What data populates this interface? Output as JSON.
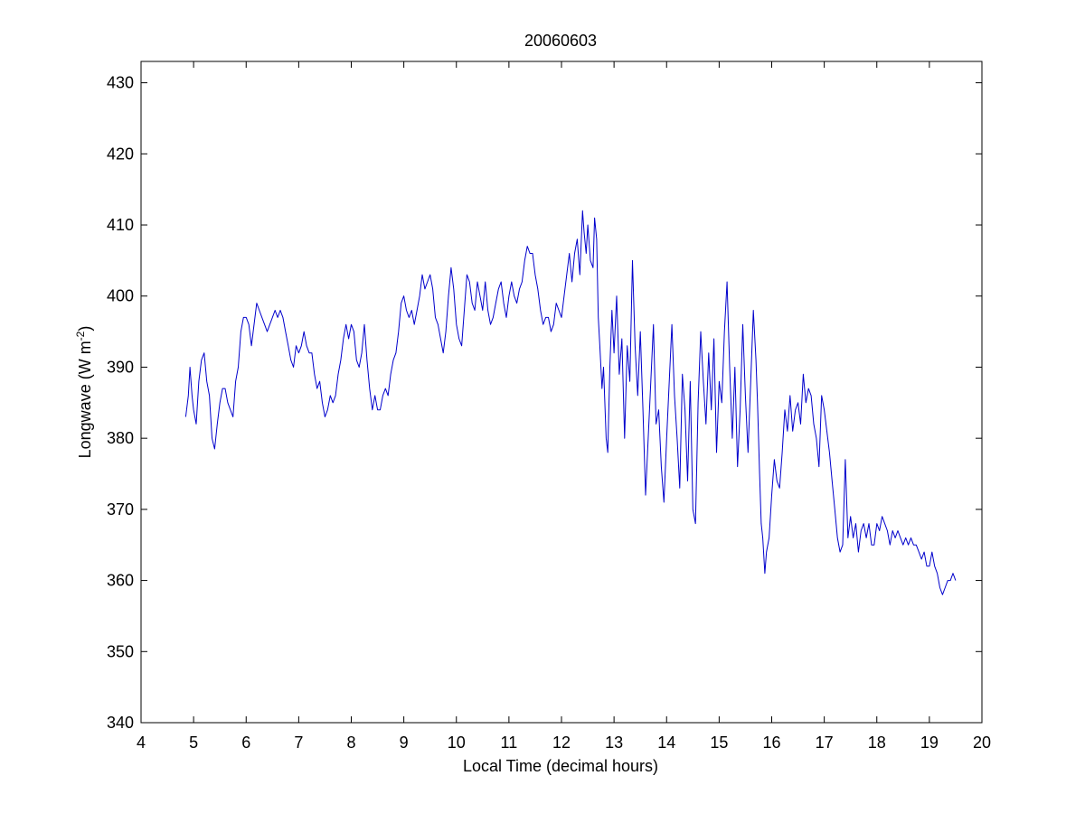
{
  "chart_data": {
    "type": "line",
    "title": "20060603",
    "xlabel": "Local Time (decimal hours)",
    "ylabel_main": "Longwave (W m",
    "ylabel_sup": "-2",
    "ylabel_close": ")",
    "xlim": [
      4,
      20
    ],
    "ylim": [
      340,
      433
    ],
    "xticks": [
      4,
      5,
      6,
      7,
      8,
      9,
      10,
      11,
      12,
      13,
      14,
      15,
      16,
      17,
      18,
      19,
      20
    ],
    "yticks": [
      340,
      350,
      360,
      370,
      380,
      390,
      400,
      410,
      420,
      430
    ],
    "grid": false,
    "line_color": "#0000cc",
    "series": [
      {
        "points": [
          [
            4.85,
            383
          ],
          [
            4.9,
            386
          ],
          [
            4.93,
            390
          ],
          [
            4.97,
            386
          ],
          [
            5.0,
            384
          ],
          [
            5.05,
            382
          ],
          [
            5.1,
            388
          ],
          [
            5.15,
            391
          ],
          [
            5.2,
            392
          ],
          [
            5.25,
            388
          ],
          [
            5.3,
            386
          ],
          [
            5.35,
            380
          ],
          [
            5.4,
            378.5
          ],
          [
            5.45,
            382
          ],
          [
            5.5,
            385
          ],
          [
            5.55,
            387
          ],
          [
            5.6,
            387
          ],
          [
            5.65,
            385
          ],
          [
            5.7,
            384
          ],
          [
            5.75,
            383
          ],
          [
            5.8,
            388
          ],
          [
            5.85,
            390
          ],
          [
            5.9,
            395
          ],
          [
            5.95,
            397
          ],
          [
            6.0,
            397
          ],
          [
            6.05,
            396
          ],
          [
            6.1,
            393
          ],
          [
            6.15,
            396
          ],
          [
            6.2,
            399
          ],
          [
            6.25,
            398
          ],
          [
            6.3,
            397
          ],
          [
            6.35,
            396
          ],
          [
            6.4,
            395
          ],
          [
            6.5,
            397
          ],
          [
            6.55,
            398
          ],
          [
            6.6,
            397
          ],
          [
            6.65,
            398
          ],
          [
            6.7,
            397
          ],
          [
            6.75,
            395
          ],
          [
            6.8,
            393
          ],
          [
            6.85,
            391
          ],
          [
            6.9,
            390
          ],
          [
            6.95,
            393
          ],
          [
            7.0,
            392
          ],
          [
            7.05,
            393
          ],
          [
            7.1,
            395
          ],
          [
            7.15,
            393
          ],
          [
            7.2,
            392
          ],
          [
            7.25,
            392
          ],
          [
            7.3,
            389
          ],
          [
            7.35,
            387
          ],
          [
            7.4,
            388
          ],
          [
            7.45,
            385
          ],
          [
            7.5,
            383
          ],
          [
            7.55,
            384
          ],
          [
            7.6,
            386
          ],
          [
            7.65,
            385
          ],
          [
            7.7,
            386
          ],
          [
            7.75,
            389
          ],
          [
            7.8,
            391
          ],
          [
            7.85,
            394
          ],
          [
            7.9,
            396
          ],
          [
            7.95,
            394
          ],
          [
            8.0,
            396
          ],
          [
            8.05,
            395
          ],
          [
            8.1,
            391
          ],
          [
            8.15,
            390
          ],
          [
            8.2,
            392
          ],
          [
            8.25,
            396
          ],
          [
            8.3,
            391
          ],
          [
            8.35,
            387
          ],
          [
            8.4,
            384
          ],
          [
            8.45,
            386
          ],
          [
            8.5,
            384
          ],
          [
            8.55,
            384
          ],
          [
            8.6,
            386
          ],
          [
            8.65,
            387
          ],
          [
            8.7,
            386
          ],
          [
            8.75,
            389
          ],
          [
            8.8,
            391
          ],
          [
            8.85,
            392
          ],
          [
            8.9,
            395
          ],
          [
            8.95,
            399
          ],
          [
            9.0,
            400
          ],
          [
            9.05,
            398
          ],
          [
            9.1,
            397
          ],
          [
            9.15,
            398
          ],
          [
            9.2,
            396
          ],
          [
            9.25,
            398
          ],
          [
            9.3,
            400
          ],
          [
            9.35,
            403
          ],
          [
            9.4,
            401
          ],
          [
            9.45,
            402
          ],
          [
            9.5,
            403
          ],
          [
            9.55,
            401
          ],
          [
            9.6,
            397
          ],
          [
            9.65,
            396
          ],
          [
            9.7,
            394
          ],
          [
            9.75,
            392
          ],
          [
            9.8,
            395
          ],
          [
            9.85,
            400
          ],
          [
            9.9,
            404
          ],
          [
            9.95,
            401
          ],
          [
            10.0,
            396
          ],
          [
            10.05,
            394
          ],
          [
            10.1,
            393
          ],
          [
            10.15,
            398
          ],
          [
            10.2,
            403
          ],
          [
            10.25,
            402
          ],
          [
            10.3,
            399
          ],
          [
            10.35,
            398
          ],
          [
            10.4,
            402
          ],
          [
            10.45,
            400
          ],
          [
            10.5,
            398
          ],
          [
            10.55,
            402
          ],
          [
            10.6,
            398
          ],
          [
            10.65,
            396
          ],
          [
            10.7,
            397
          ],
          [
            10.75,
            399
          ],
          [
            10.8,
            401
          ],
          [
            10.85,
            402
          ],
          [
            10.9,
            399
          ],
          [
            10.95,
            397
          ],
          [
            11.0,
            400
          ],
          [
            11.05,
            402
          ],
          [
            11.1,
            400
          ],
          [
            11.15,
            399
          ],
          [
            11.2,
            401
          ],
          [
            11.25,
            402
          ],
          [
            11.3,
            405
          ],
          [
            11.35,
            407
          ],
          [
            11.4,
            406
          ],
          [
            11.45,
            406
          ],
          [
            11.5,
            403
          ],
          [
            11.55,
            401
          ],
          [
            11.6,
            398
          ],
          [
            11.65,
            396
          ],
          [
            11.7,
            397
          ],
          [
            11.75,
            397
          ],
          [
            11.8,
            395
          ],
          [
            11.85,
            396
          ],
          [
            11.9,
            399
          ],
          [
            11.95,
            398
          ],
          [
            12.0,
            397
          ],
          [
            12.05,
            400
          ],
          [
            12.1,
            403
          ],
          [
            12.15,
            406
          ],
          [
            12.2,
            402
          ],
          [
            12.25,
            406
          ],
          [
            12.3,
            408
          ],
          [
            12.35,
            403
          ],
          [
            12.4,
            412
          ],
          [
            12.43,
            409
          ],
          [
            12.47,
            406
          ],
          [
            12.5,
            410
          ],
          [
            12.55,
            405
          ],
          [
            12.6,
            404
          ],
          [
            12.63,
            411
          ],
          [
            12.67,
            408
          ],
          [
            12.7,
            397
          ],
          [
            12.73,
            393
          ],
          [
            12.77,
            387
          ],
          [
            12.8,
            390
          ],
          [
            12.85,
            380
          ],
          [
            12.88,
            378
          ],
          [
            12.92,
            390
          ],
          [
            12.96,
            398
          ],
          [
            13.0,
            392
          ],
          [
            13.05,
            400
          ],
          [
            13.1,
            389
          ],
          [
            13.15,
            394
          ],
          [
            13.2,
            380
          ],
          [
            13.25,
            393
          ],
          [
            13.3,
            388
          ],
          [
            13.35,
            405
          ],
          [
            13.4,
            393
          ],
          [
            13.45,
            386
          ],
          [
            13.5,
            395
          ],
          [
            13.55,
            384
          ],
          [
            13.6,
            372
          ],
          [
            13.65,
            380
          ],
          [
            13.7,
            388
          ],
          [
            13.75,
            396
          ],
          [
            13.8,
            382
          ],
          [
            13.85,
            384
          ],
          [
            13.9,
            376
          ],
          [
            13.95,
            371
          ],
          [
            14.0,
            380
          ],
          [
            14.05,
            388
          ],
          [
            14.1,
            396
          ],
          [
            14.15,
            386
          ],
          [
            14.2,
            380
          ],
          [
            14.25,
            373
          ],
          [
            14.3,
            389
          ],
          [
            14.35,
            384
          ],
          [
            14.4,
            374
          ],
          [
            14.45,
            388
          ],
          [
            14.5,
            370
          ],
          [
            14.55,
            368
          ],
          [
            14.6,
            385
          ],
          [
            14.65,
            395
          ],
          [
            14.7,
            388
          ],
          [
            14.75,
            382
          ],
          [
            14.8,
            392
          ],
          [
            14.85,
            384
          ],
          [
            14.9,
            394
          ],
          [
            14.95,
            378
          ],
          [
            15.0,
            388
          ],
          [
            15.05,
            385
          ],
          [
            15.1,
            395
          ],
          [
            15.15,
            402
          ],
          [
            15.2,
            390
          ],
          [
            15.25,
            380
          ],
          [
            15.3,
            390
          ],
          [
            15.35,
            376
          ],
          [
            15.4,
            384
          ],
          [
            15.45,
            396
          ],
          [
            15.5,
            386
          ],
          [
            15.55,
            378
          ],
          [
            15.6,
            388
          ],
          [
            15.65,
            398
          ],
          [
            15.7,
            391
          ],
          [
            15.73,
            385
          ],
          [
            15.77,
            375
          ],
          [
            15.8,
            368
          ],
          [
            15.83,
            366
          ],
          [
            15.87,
            361
          ],
          [
            15.9,
            364
          ],
          [
            15.95,
            366
          ],
          [
            16.0,
            372
          ],
          [
            16.05,
            377
          ],
          [
            16.1,
            374
          ],
          [
            16.15,
            373
          ],
          [
            16.2,
            378
          ],
          [
            16.25,
            384
          ],
          [
            16.3,
            381
          ],
          [
            16.35,
            386
          ],
          [
            16.4,
            381
          ],
          [
            16.45,
            384
          ],
          [
            16.5,
            385
          ],
          [
            16.55,
            382
          ],
          [
            16.6,
            389
          ],
          [
            16.65,
            385
          ],
          [
            16.7,
            387
          ],
          [
            16.75,
            386
          ],
          [
            16.8,
            382
          ],
          [
            16.85,
            380
          ],
          [
            16.9,
            376
          ],
          [
            16.95,
            386
          ],
          [
            17.0,
            384
          ],
          [
            17.05,
            381
          ],
          [
            17.1,
            378
          ],
          [
            17.15,
            374
          ],
          [
            17.2,
            370
          ],
          [
            17.25,
            366
          ],
          [
            17.3,
            364
          ],
          [
            17.35,
            365
          ],
          [
            17.4,
            377
          ],
          [
            17.45,
            366
          ],
          [
            17.5,
            369
          ],
          [
            17.55,
            366
          ],
          [
            17.6,
            368
          ],
          [
            17.65,
            364
          ],
          [
            17.7,
            367
          ],
          [
            17.75,
            368
          ],
          [
            17.8,
            366
          ],
          [
            17.85,
            368
          ],
          [
            17.9,
            365
          ],
          [
            17.95,
            365
          ],
          [
            18.0,
            368
          ],
          [
            18.05,
            367
          ],
          [
            18.1,
            369
          ],
          [
            18.15,
            368
          ],
          [
            18.2,
            367
          ],
          [
            18.25,
            365
          ],
          [
            18.3,
            367
          ],
          [
            18.35,
            366
          ],
          [
            18.4,
            367
          ],
          [
            18.45,
            366
          ],
          [
            18.5,
            365
          ],
          [
            18.55,
            366
          ],
          [
            18.6,
            365
          ],
          [
            18.65,
            366
          ],
          [
            18.7,
            365
          ],
          [
            18.75,
            365
          ],
          [
            18.8,
            364
          ],
          [
            18.85,
            363
          ],
          [
            18.9,
            364
          ],
          [
            18.95,
            362
          ],
          [
            19.0,
            362
          ],
          [
            19.05,
            364
          ],
          [
            19.1,
            362
          ],
          [
            19.15,
            361
          ],
          [
            19.2,
            359
          ],
          [
            19.25,
            358
          ],
          [
            19.3,
            359
          ],
          [
            19.35,
            360
          ],
          [
            19.4,
            360
          ],
          [
            19.45,
            361
          ],
          [
            19.5,
            360
          ]
        ]
      }
    ]
  }
}
